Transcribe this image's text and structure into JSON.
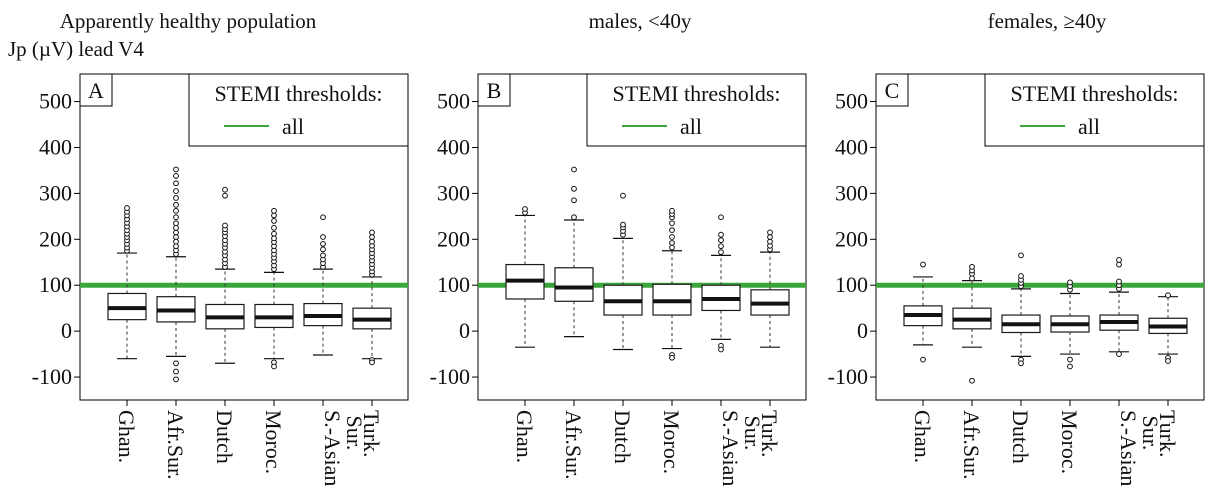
{
  "figure": {
    "ylabel": "Jp (µV) lead V4"
  },
  "colors": {
    "threshold": "#3aa63a",
    "box_stroke": "#1a1a1a",
    "median": "#111111"
  },
  "chart_data": [
    {
      "type": "box",
      "letter": "A",
      "title": "Apparently healthy population",
      "ylim": [
        -150,
        560
      ],
      "yticks": [
        "-100",
        "0",
        "100",
        "200",
        "300",
        "400",
        "500"
      ],
      "ytick_values": [
        -100,
        0,
        100,
        200,
        300,
        400,
        500
      ],
      "categories": [
        "Ghan.",
        "Afr.Sur.",
        "Dutch",
        "Moroc.",
        "S.-Asian Sur.",
        "Turk."
      ],
      "threshold": 100,
      "legend": {
        "title": "STEMI thresholds:",
        "entry": "all",
        "position": "top-right"
      },
      "boxes": [
        {
          "whisker_low": -60,
          "q1": 25,
          "median": 50,
          "q3": 82,
          "whisker_high": 170,
          "outliers": [
            175,
            182,
            190,
            198,
            205,
            212,
            220,
            228,
            236,
            244,
            252,
            260,
            268
          ]
        },
        {
          "whisker_low": -55,
          "q1": 20,
          "median": 45,
          "q3": 75,
          "whisker_high": 162,
          "outliers": [
            -70,
            -88,
            -105,
            168,
            176,
            185,
            195,
            205,
            215,
            225,
            235,
            248,
            262,
            275,
            290,
            305,
            322,
            338,
            352
          ]
        },
        {
          "whisker_low": -70,
          "q1": 5,
          "median": 30,
          "q3": 58,
          "whisker_high": 135,
          "outliers": [
            140,
            148,
            156,
            165,
            173,
            182,
            190,
            198,
            207,
            215,
            222,
            230,
            295,
            308
          ]
        },
        {
          "whisker_low": -60,
          "q1": 8,
          "median": 30,
          "q3": 58,
          "whisker_high": 128,
          "outliers": [
            -68,
            -77,
            135,
            143,
            152,
            160,
            168,
            176,
            185,
            194,
            202,
            212,
            225,
            240,
            252,
            262
          ]
        },
        {
          "whisker_low": -52,
          "q1": 12,
          "median": 33,
          "q3": 60,
          "whisker_high": 135,
          "outliers": [
            140,
            148,
            156,
            165,
            178,
            190,
            205,
            248
          ]
        },
        {
          "whisker_low": -60,
          "q1": 5,
          "median": 25,
          "q3": 50,
          "whisker_high": 118,
          "outliers": [
            -63,
            -68,
            123,
            130,
            138,
            146,
            154,
            162,
            170,
            178,
            186,
            195,
            205,
            215
          ]
        }
      ]
    },
    {
      "type": "box",
      "letter": "B",
      "title": "males, <40y",
      "ylim": [
        -150,
        560
      ],
      "yticks": [
        "-100",
        "0",
        "100",
        "200",
        "300",
        "400",
        "500"
      ],
      "ytick_values": [
        -100,
        0,
        100,
        200,
        300,
        400,
        500
      ],
      "categories": [
        "Ghan.",
        "Afr.Sur.",
        "Dutch",
        "Moroc.",
        "S.-Asian Sur.",
        "Turk."
      ],
      "threshold": 100,
      "legend": {
        "title": "STEMI thresholds:",
        "entry": "all",
        "position": "top-right"
      },
      "boxes": [
        {
          "whisker_low": -35,
          "q1": 70,
          "median": 110,
          "q3": 145,
          "whisker_high": 252,
          "outliers": [
            258,
            266
          ]
        },
        {
          "whisker_low": -12,
          "q1": 65,
          "median": 95,
          "q3": 138,
          "whisker_high": 242,
          "outliers": [
            248,
            285,
            310,
            352
          ]
        },
        {
          "whisker_low": -40,
          "q1": 35,
          "median": 65,
          "q3": 100,
          "whisker_high": 202,
          "outliers": [
            210,
            218,
            226,
            232,
            295
          ]
        },
        {
          "whisker_low": -38,
          "q1": 35,
          "median": 65,
          "q3": 102,
          "whisker_high": 175,
          "outliers": [
            -52,
            -58,
            182,
            192,
            205,
            220,
            235,
            248,
            255,
            262
          ]
        },
        {
          "whisker_low": -18,
          "q1": 45,
          "median": 70,
          "q3": 100,
          "whisker_high": 165,
          "outliers": [
            -32,
            -40,
            172,
            185,
            198,
            210,
            248
          ]
        },
        {
          "whisker_low": -35,
          "q1": 35,
          "median": 60,
          "q3": 90,
          "whisker_high": 172,
          "outliers": [
            178,
            186,
            195,
            205,
            215
          ]
        }
      ]
    },
    {
      "type": "box",
      "letter": "C",
      "title": "females, ≥40y",
      "ylim": [
        -150,
        560
      ],
      "yticks": [
        "-100",
        "0",
        "100",
        "200",
        "300",
        "400",
        "500"
      ],
      "ytick_values": [
        -100,
        0,
        100,
        200,
        300,
        400,
        500
      ],
      "categories": [
        "Ghan.",
        "Afr.Sur.",
        "Dutch",
        "Moroc.",
        "S.-Asian Sur.",
        "Turk."
      ],
      "threshold": 100,
      "legend": {
        "title": "STEMI thresholds:",
        "entry": "all",
        "position": "top-right"
      },
      "boxes": [
        {
          "whisker_low": -30,
          "q1": 12,
          "median": 35,
          "q3": 55,
          "whisker_high": 118,
          "outliers": [
            -62,
            145
          ]
        },
        {
          "whisker_low": -35,
          "q1": 5,
          "median": 25,
          "q3": 50,
          "whisker_high": 110,
          "outliers": [
            -108,
            115,
            125,
            132,
            140
          ]
        },
        {
          "whisker_low": -55,
          "q1": -3,
          "median": 15,
          "q3": 35,
          "whisker_high": 92,
          "outliers": [
            -62,
            -70,
            98,
            105,
            112,
            120,
            165
          ]
        },
        {
          "whisker_low": -50,
          "q1": -2,
          "median": 15,
          "q3": 33,
          "whisker_high": 82,
          "outliers": [
            -62,
            -77,
            90,
            98,
            106
          ]
        },
        {
          "whisker_low": -45,
          "q1": 2,
          "median": 20,
          "q3": 35,
          "whisker_high": 85,
          "outliers": [
            -50,
            92,
            100,
            108,
            145,
            155
          ]
        },
        {
          "whisker_low": -50,
          "q1": -5,
          "median": 10,
          "q3": 28,
          "whisker_high": 75,
          "outliers": [
            -58,
            -65,
            78
          ]
        }
      ]
    }
  ]
}
